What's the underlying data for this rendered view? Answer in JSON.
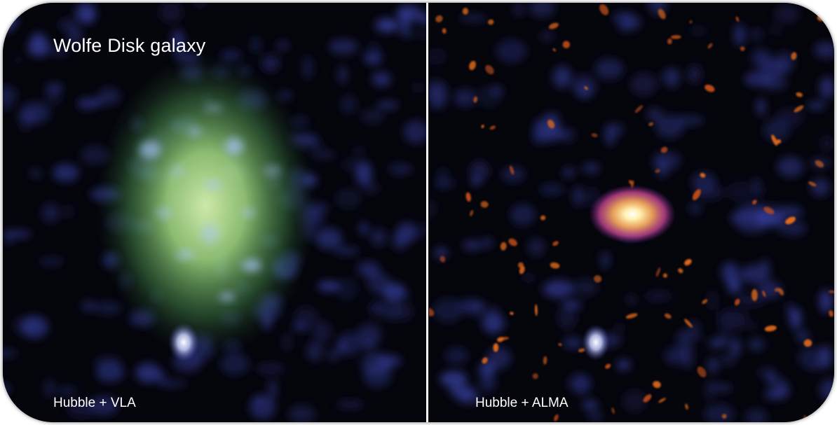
{
  "image": {
    "title": "Wolfe Disk galaxy",
    "panels": [
      {
        "caption": "Hubble + VLA"
      },
      {
        "caption": "Hubble + ALMA"
      }
    ]
  },
  "colors": {
    "background": "#05050c",
    "hubble_blue": "#5a6ad8",
    "vla_green": "#a8e08a",
    "alma_orange": "#e06a1c",
    "alma_core": "#fff4c0",
    "divider": "#ffffff"
  }
}
